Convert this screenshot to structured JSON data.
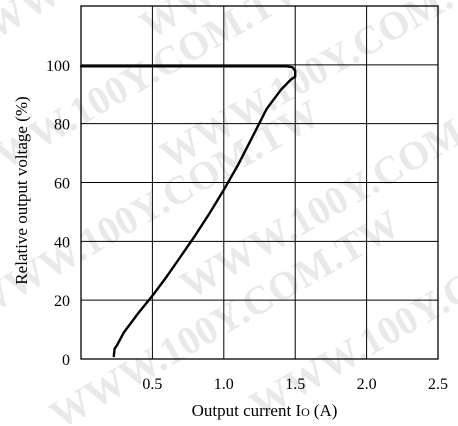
{
  "chart_data": {
    "type": "line",
    "title": "",
    "xlabel": "Output current I",
    "xlabel_sub": "O",
    "xlabel_unit": "(A)",
    "ylabel": "Relative output voltage (%)",
    "xlim": [
      0,
      2.5
    ],
    "ylim": [
      0,
      120
    ],
    "grid": true,
    "x_ticks": [
      0.5,
      1.0,
      1.5,
      2.0,
      2.5
    ],
    "x_tick_labels": [
      "0.5",
      "1.0",
      "1.5",
      "2.0",
      "2.5"
    ],
    "y_ticks": [
      0,
      20,
      40,
      60,
      80,
      100
    ],
    "y_tick_labels": [
      "0",
      "20",
      "40",
      "60",
      "80",
      "100"
    ],
    "series": [
      {
        "x": [
          0.23,
          0.235,
          0.25,
          0.3,
          0.4,
          0.5,
          0.6,
          0.7,
          0.8,
          0.9,
          1.0,
          1.1,
          1.2,
          1.3,
          1.4,
          1.47,
          1.5,
          1.5,
          1.48,
          1.44,
          1.3,
          1.0,
          0.5,
          0.0
        ],
        "y": [
          1,
          3.5,
          4.5,
          9,
          15.5,
          21.5,
          28,
          35,
          42,
          49.5,
          57.5,
          66,
          75.5,
          85,
          91.5,
          95,
          96,
          98,
          99.2,
          99.5,
          99.5,
          99.5,
          99.5,
          99.5
        ]
      }
    ],
    "color": "#000000"
  },
  "watermark": {
    "text": "WWW.100Y.COM.TW",
    "color": "#e9e9e9"
  }
}
